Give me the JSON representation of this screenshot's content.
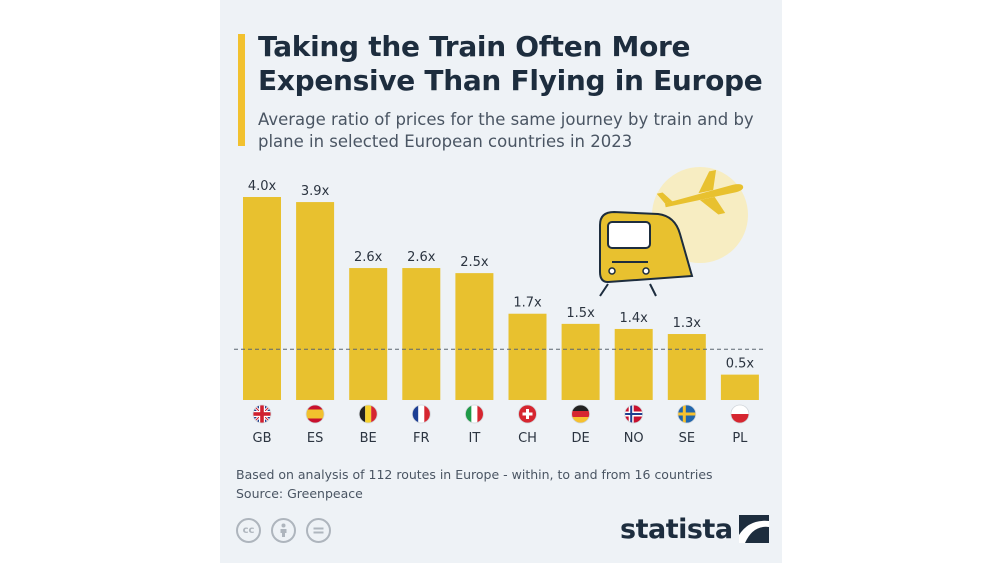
{
  "header": {
    "title": "Taking the Train Often More Expensive Than Flying in Europe",
    "subtitle": "Average ratio of prices for the same journey by train and by plane in selected European countries in 2023"
  },
  "footer": {
    "note": "Based on analysis of 112 routes in Europe - within, to and from 16 countries",
    "source": "Source: Greenpeace",
    "brand": "statista",
    "license_icons": [
      "cc-icon",
      "attribution-icon",
      "no-derivatives-icon"
    ]
  },
  "colors": {
    "bar": "#e8c12f",
    "accent": "#f2c12e",
    "text": "#1d2d3e",
    "muted": "#4a5563"
  },
  "chart_data": {
    "type": "bar",
    "categories": [
      "GB",
      "ES",
      "BE",
      "FR",
      "IT",
      "CH",
      "DE",
      "NO",
      "SE",
      "PL"
    ],
    "values": [
      4.0,
      3.9,
      2.6,
      2.6,
      2.5,
      1.7,
      1.5,
      1.4,
      1.3,
      0.5
    ],
    "value_labels": [
      "4.0x",
      "3.9x",
      "2.6x",
      "2.6x",
      "2.5x",
      "1.7x",
      "1.5x",
      "1.4x",
      "1.3x",
      "0.5x"
    ],
    "flags": [
      "uk-flag-icon",
      "spain-flag-icon",
      "belgium-flag-icon",
      "france-flag-icon",
      "italy-flag-icon",
      "switzerland-flag-icon",
      "germany-flag-icon",
      "norway-flag-icon",
      "sweden-flag-icon",
      "poland-flag-icon"
    ],
    "reference_line": 1.0,
    "ylim": [
      0,
      4.0
    ],
    "grid": false,
    "title": "",
    "xlabel": "",
    "ylabel": ""
  }
}
